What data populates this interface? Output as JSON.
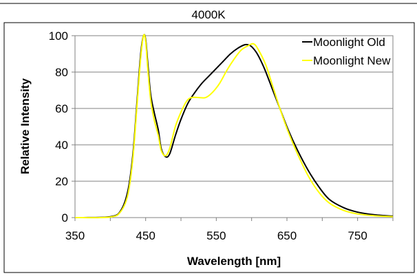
{
  "chart_data": {
    "type": "line",
    "title": "4000K",
    "xlabel": "Wavelength [nm]",
    "ylabel": "Relative Intensity",
    "xlim": [
      350,
      800
    ],
    "ylim": [
      0,
      100
    ],
    "xticks": [
      350,
      450,
      550,
      650,
      750
    ],
    "yticks": [
      0,
      20,
      40,
      60,
      80,
      100
    ],
    "grid": "horizontal",
    "legend_position": "top-right",
    "series": [
      {
        "name": "Moonlight Old",
        "color": "#000000",
        "points": [
          [
            350,
            0
          ],
          [
            400,
            0.5
          ],
          [
            415,
            4
          ],
          [
            425,
            15
          ],
          [
            432,
            35
          ],
          [
            438,
            65
          ],
          [
            443,
            90
          ],
          [
            447,
            100
          ],
          [
            450,
            98
          ],
          [
            453,
            85
          ],
          [
            457,
            68
          ],
          [
            462,
            58
          ],
          [
            468,
            48
          ],
          [
            472,
            38
          ],
          [
            478,
            33.5
          ],
          [
            484,
            35
          ],
          [
            492,
            45
          ],
          [
            500,
            54
          ],
          [
            510,
            63
          ],
          [
            520,
            69
          ],
          [
            530,
            74
          ],
          [
            540,
            78
          ],
          [
            550,
            82
          ],
          [
            560,
            86
          ],
          [
            570,
            90
          ],
          [
            580,
            93
          ],
          [
            590,
            95
          ],
          [
            595,
            95
          ],
          [
            600,
            94
          ],
          [
            608,
            90
          ],
          [
            618,
            82
          ],
          [
            630,
            70
          ],
          [
            640,
            60
          ],
          [
            652,
            48
          ],
          [
            665,
            37
          ],
          [
            680,
            26
          ],
          [
            695,
            17
          ],
          [
            710,
            10
          ],
          [
            730,
            5.5
          ],
          [
            750,
            3
          ],
          [
            775,
            1.5
          ],
          [
            800,
            0.8
          ]
        ]
      },
      {
        "name": "Moonlight New",
        "color": "#FFFF00",
        "points": [
          [
            350,
            0
          ],
          [
            400,
            0.3
          ],
          [
            415,
            3.5
          ],
          [
            425,
            13
          ],
          [
            432,
            33
          ],
          [
            438,
            63
          ],
          [
            443,
            88
          ],
          [
            447,
            100
          ],
          [
            450,
            97
          ],
          [
            453,
            82
          ],
          [
            457,
            65
          ],
          [
            462,
            54
          ],
          [
            468,
            45
          ],
          [
            472,
            37
          ],
          [
            478,
            34
          ],
          [
            484,
            38
          ],
          [
            492,
            50
          ],
          [
            500,
            58
          ],
          [
            508,
            64
          ],
          [
            515,
            66
          ],
          [
            525,
            66
          ],
          [
            535,
            66
          ],
          [
            545,
            69
          ],
          [
            555,
            74
          ],
          [
            565,
            81
          ],
          [
            575,
            87
          ],
          [
            585,
            92
          ],
          [
            595,
            94.5
          ],
          [
            603,
            95.5
          ],
          [
            610,
            92
          ],
          [
            620,
            84
          ],
          [
            630,
            72
          ],
          [
            640,
            60
          ],
          [
            652,
            47
          ],
          [
            665,
            35
          ],
          [
            680,
            23
          ],
          [
            695,
            14
          ],
          [
            710,
            8
          ],
          [
            730,
            4
          ],
          [
            750,
            2
          ],
          [
            775,
            1
          ],
          [
            800,
            0.5
          ]
        ]
      }
    ]
  }
}
